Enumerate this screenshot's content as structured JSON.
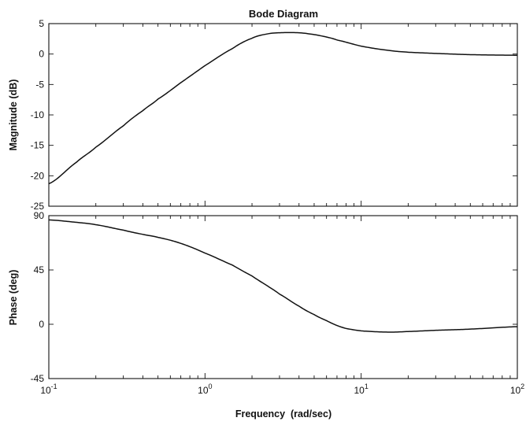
{
  "chart_data": {
    "type": "line",
    "title": "Bode Diagram",
    "xlabel": "Frequency  (rad/sec)",
    "x_scale": "log",
    "xlim": [
      0.1,
      100
    ],
    "x_ticks": [
      0.1,
      1,
      10,
      100
    ],
    "x_tick_labels": [
      {
        "base": "10",
        "exp": "-1"
      },
      {
        "base": "10",
        "exp": "0"
      },
      {
        "base": "10",
        "exp": "1"
      },
      {
        "base": "10",
        "exp": "2"
      }
    ],
    "grid": false,
    "panels": [
      {
        "id": "magnitude",
        "ylabel": "Magnitude (dB)",
        "ylim": [
          -25,
          5
        ],
        "y_ticks": [
          5,
          0,
          -5,
          -10,
          -15,
          -20,
          -25
        ],
        "x": [
          0.1,
          0.15,
          0.2,
          0.3,
          0.4,
          0.5,
          0.7,
          1.0,
          1.5,
          2.0,
          2.5,
          3.0,
          4.0,
          5.0,
          6.0,
          7.0,
          10.0,
          15.0,
          20.0,
          30.0,
          50.0,
          100.0
        ],
        "y": [
          -21.3,
          -17.8,
          -15.3,
          -11.8,
          -9.3,
          -7.4,
          -4.7,
          -1.9,
          0.9,
          2.6,
          3.3,
          3.5,
          3.5,
          3.2,
          2.8,
          2.3,
          1.3,
          0.6,
          0.3,
          0.1,
          -0.1,
          -0.2
        ]
      },
      {
        "id": "phase",
        "ylabel": "Phase (deg)",
        "ylim": [
          -45,
          90
        ],
        "y_ticks": [
          90,
          45,
          0,
          -45
        ],
        "x": [
          0.1,
          0.15,
          0.2,
          0.3,
          0.4,
          0.5,
          0.7,
          1.0,
          1.5,
          2.0,
          2.5,
          3.0,
          4.0,
          5.0,
          6.0,
          7.0,
          8.0,
          10.0,
          15.0,
          20.0,
          30.0,
          50.0,
          100.0
        ],
        "y": [
          86.5,
          84.5,
          82.5,
          78,
          74.5,
          72,
          67,
          59,
          49,
          40,
          32,
          25,
          15,
          8,
          3,
          -1,
          -3.5,
          -5.5,
          -6.5,
          -6,
          -5,
          -4,
          -2
        ]
      }
    ]
  }
}
